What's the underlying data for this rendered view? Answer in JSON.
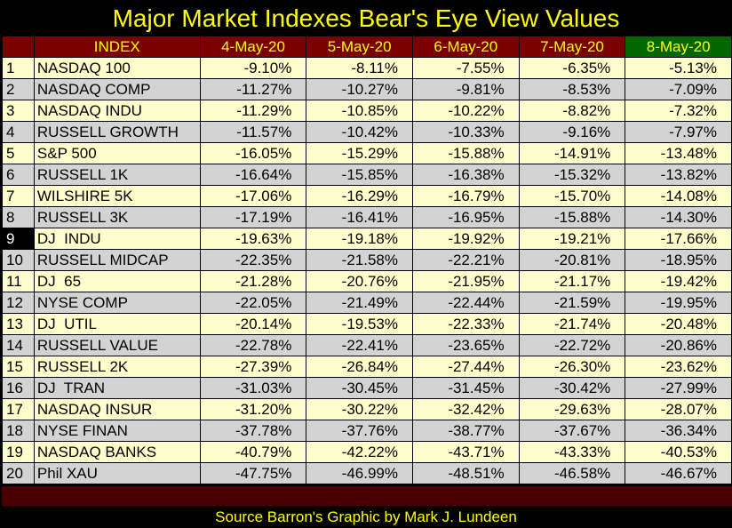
{
  "title": "Major Market Indexes Bear's Eye View Values",
  "header": [
    "INDEX",
    "4-May-20",
    "5-May-20",
    "6-May-20",
    "7-May-20",
    "8-May-20"
  ],
  "rows": [
    {
      "n": "1",
      "name": "NASDAQ 100",
      "v": [
        "-9.10%",
        "-8.11%",
        "-7.55%",
        "-6.35%",
        "-5.13%"
      ]
    },
    {
      "n": "2",
      "name": "NASDAQ COMP",
      "v": [
        "-11.27%",
        "-10.27%",
        "-9.81%",
        "-8.53%",
        "-7.09%"
      ]
    },
    {
      "n": "3",
      "name": "NASDAQ INDU",
      "v": [
        "-11.29%",
        "-10.85%",
        "-10.22%",
        "-8.82%",
        "-7.32%"
      ]
    },
    {
      "n": "4",
      "name": "RUSSELL GROWTH",
      "v": [
        "-11.57%",
        "-10.42%",
        "-10.33%",
        "-9.16%",
        "-7.97%"
      ]
    },
    {
      "n": "5",
      "name": "S&P 500",
      "v": [
        "-16.05%",
        "-15.29%",
        "-15.88%",
        "-14.91%",
        "-13.48%"
      ]
    },
    {
      "n": "6",
      "name": "RUSSELL 1K",
      "v": [
        "-16.64%",
        "-15.85%",
        "-16.38%",
        "-15.32%",
        "-13.82%"
      ]
    },
    {
      "n": "7",
      "name": "WILSHIRE 5K",
      "v": [
        "-17.06%",
        "-16.29%",
        "-16.79%",
        "-15.70%",
        "-14.08%"
      ]
    },
    {
      "n": "8",
      "name": "RUSSELL 3K",
      "v": [
        "-17.19%",
        "-16.41%",
        "-16.95%",
        "-15.88%",
        "-14.30%"
      ]
    },
    {
      "n": "9",
      "name": "DJ  INDU",
      "v": [
        "-19.63%",
        "-19.18%",
        "-19.92%",
        "-19.21%",
        "-17.66%"
      ]
    },
    {
      "n": "10",
      "name": "RUSSELL MIDCAP",
      "v": [
        "-22.35%",
        "-21.58%",
        "-22.21%",
        "-20.81%",
        "-18.95%"
      ]
    },
    {
      "n": "11",
      "name": "DJ  65",
      "v": [
        "-21.28%",
        "-20.76%",
        "-21.95%",
        "-21.17%",
        "-19.42%"
      ]
    },
    {
      "n": "12",
      "name": "NYSE COMP",
      "v": [
        "-22.05%",
        "-21.49%",
        "-22.44%",
        "-21.59%",
        "-19.95%"
      ]
    },
    {
      "n": "13",
      "name": "DJ  UTIL",
      "v": [
        "-20.14%",
        "-19.53%",
        "-22.33%",
        "-21.74%",
        "-20.48%"
      ]
    },
    {
      "n": "14",
      "name": "RUSSELL VALUE",
      "v": [
        "-22.78%",
        "-22.41%",
        "-23.65%",
        "-22.72%",
        "-20.86%"
      ]
    },
    {
      "n": "15",
      "name": "RUSSELL 2K",
      "v": [
        "-27.39%",
        "-26.84%",
        "-27.44%",
        "-26.30%",
        "-23.62%"
      ]
    },
    {
      "n": "16",
      "name": "DJ  TRAN",
      "v": [
        "-31.03%",
        "-30.45%",
        "-31.45%",
        "-30.42%",
        "-27.99%"
      ]
    },
    {
      "n": "17",
      "name": "NASDAQ INSUR",
      "v": [
        "-31.20%",
        "-30.22%",
        "-32.42%",
        "-29.63%",
        "-28.07%"
      ]
    },
    {
      "n": "18",
      "name": "NYSE FINAN",
      "v": [
        "-37.78%",
        "-37.76%",
        "-38.77%",
        "-37.67%",
        "-36.34%"
      ]
    },
    {
      "n": "19",
      "name": "NASDAQ BANKS",
      "v": [
        "-40.79%",
        "-42.22%",
        "-43.71%",
        "-43.33%",
        "-40.53%"
      ]
    },
    {
      "n": "20",
      "name": "Phil XAU",
      "v": [
        "-47.75%",
        "-46.99%",
        "-48.51%",
        "-46.58%",
        "-46.67%"
      ]
    }
  ],
  "highlighted_row": "9",
  "footer": "Source Barron's   Graphic by Mark J. Lundeen",
  "colors": {
    "title": "#ffff00",
    "header_bg": "#7a0000",
    "header_highlight_bg": "#006600",
    "row_odd": "#ffffcc",
    "row_even": "#d3d3d3",
    "footer_bar": "#4a0000"
  }
}
